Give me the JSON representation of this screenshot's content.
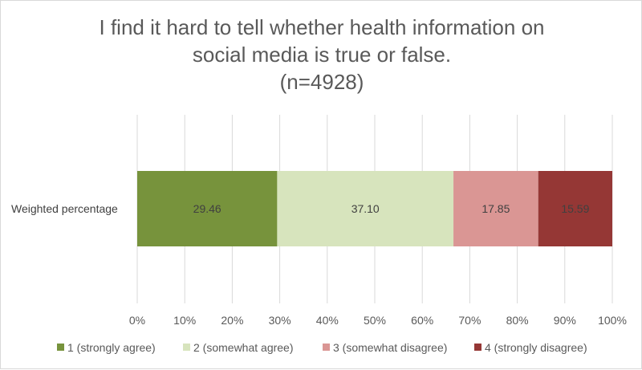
{
  "chart_data": {
    "type": "bar",
    "orientation": "horizontal",
    "stacked": true,
    "title_lines": [
      "I find it hard to tell whether health information on",
      "social media is true or false.",
      "(n=4928)"
    ],
    "categories": [
      "Weighted percentage"
    ],
    "series": [
      {
        "name": "1 (strongly agree)",
        "values": [
          29.46
        ],
        "color": "#77933c"
      },
      {
        "name": "2 (somewhat agree)",
        "values": [
          37.1
        ],
        "color": "#d7e4bd"
      },
      {
        "name": "3 (somewhat disagree)",
        "values": [
          17.85
        ],
        "color": "#da9694"
      },
      {
        "name": "4 (strongly disagree)",
        "values": [
          15.59
        ],
        "color": "#953735"
      }
    ],
    "data_labels": [
      "29.46",
      "37.10",
      "17.85",
      "15.59"
    ],
    "x_ticks": [
      "0%",
      "10%",
      "20%",
      "30%",
      "40%",
      "50%",
      "60%",
      "70%",
      "80%",
      "90%",
      "100%"
    ],
    "xlim": [
      0,
      100
    ],
    "grid": true,
    "legend_position": "bottom"
  }
}
